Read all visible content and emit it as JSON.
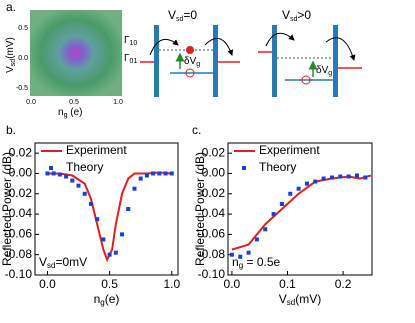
{
  "panel_labels": [
    "a.",
    "b.",
    "c."
  ],
  "panel_a": {
    "x_label": {
      "main": "n",
      "sub": "g",
      "rest": " (e)"
    },
    "y_label": {
      "main": "V",
      "sub": "sd",
      "rest": "(mV)"
    },
    "xticks": [
      "0.0",
      "0.5",
      "1.0"
    ],
    "yticks": [
      "0.5",
      "0.0",
      "-0.5"
    ],
    "diagram_left": {
      "title": {
        "main": "V",
        "sub": "sd",
        "rest": "=0"
      },
      "gamma_in": {
        "main": "Γ",
        "sub": "10"
      },
      "gamma_out": {
        "main": "Γ",
        "sub": "01"
      },
      "shift": {
        "main": "δV",
        "sub": "g"
      }
    },
    "diagram_right": {
      "title": {
        "main": "V",
        "sub": "sd",
        "rest": ">0"
      },
      "shift": {
        "main": "δV",
        "sub": "g"
      }
    }
  },
  "chart_data": [
    {
      "type": "line",
      "y_label": "Reflected Power (dB)",
      "x_label": {
        "main": "n",
        "sub": "g",
        "rest": "(e)"
      },
      "annotation": {
        "main": "V",
        "sub": "sd",
        "rest": "=0mV"
      },
      "xlim": [
        -0.1,
        1.05
      ],
      "xticks": [
        {
          "value": 0,
          "label": "0.0"
        },
        {
          "value": 0.5,
          "label": "0.5"
        },
        {
          "value": 1,
          "label": "1.0"
        }
      ],
      "ylim": [
        -0.1,
        0.03
      ],
      "yticks": [
        {
          "value": 0.02,
          "label": "0.02"
        },
        {
          "value": 0,
          "label": "0.00"
        },
        {
          "value": -0.02,
          "label": "-0.02"
        },
        {
          "value": -0.04,
          "label": "-0.04"
        },
        {
          "value": -0.06,
          "label": "-0.06"
        },
        {
          "value": -0.08,
          "label": "-0.08"
        },
        {
          "value": -0.1,
          "label": "-0.10"
        }
      ],
      "series": [
        {
          "name": "Experiment",
          "kind": "line",
          "color": "#e02020",
          "x": [
            0,
            0.1,
            0.2,
            0.3,
            0.35,
            0.4,
            0.45,
            0.48,
            0.52,
            0.55,
            0.6,
            0.65,
            0.7,
            0.8,
            0.9,
            1.0
          ],
          "values": [
            0,
            0,
            -0.002,
            -0.01,
            -0.025,
            -0.05,
            -0.075,
            -0.085,
            -0.075,
            -0.05,
            -0.02,
            -0.005,
            0,
            0,
            0.001,
            0
          ]
        },
        {
          "name": "Theory",
          "kind": "scatter",
          "color": "#1a3fd6",
          "x": [
            0,
            0.05,
            0.1,
            0.15,
            0.2,
            0.25,
            0.3,
            0.35,
            0.4,
            0.45,
            0.5,
            0.55,
            0.6,
            0.65,
            0.7,
            0.75,
            0.8,
            0.85,
            0.9,
            0.95,
            1.0
          ],
          "values": [
            0,
            0,
            -0.001,
            -0.003,
            -0.007,
            -0.012,
            -0.02,
            -0.03,
            -0.045,
            -0.065,
            -0.08,
            -0.078,
            -0.06,
            -0.035,
            -0.015,
            -0.005,
            -0.002,
            0,
            0,
            0,
            0
          ]
        }
      ]
    },
    {
      "type": "line",
      "y_label": "Reflected Power (dB)",
      "x_label": {
        "main": "V",
        "sub": "sd",
        "rest": "(mV)"
      },
      "annotation": {
        "main": "n",
        "sub": "g",
        "rest": " = 0.5e"
      },
      "xlim": [
        -0.007,
        0.252
      ],
      "xticks": [
        {
          "value": 0,
          "label": "0.0"
        },
        {
          "value": 0.1,
          "label": "0.1"
        },
        {
          "value": 0.2,
          "label": "0.2"
        }
      ],
      "ylim": [
        -0.1,
        0.03
      ],
      "yticks": [
        {
          "value": 0.02,
          "label": "0.02"
        },
        {
          "value": 0,
          "label": "0.00"
        },
        {
          "value": -0.02,
          "label": "-0.02"
        },
        {
          "value": -0.04,
          "label": "-0.04"
        },
        {
          "value": -0.06,
          "label": "-0.06"
        },
        {
          "value": -0.08,
          "label": "-0.08"
        },
        {
          "value": -0.1,
          "label": "-0.10"
        }
      ],
      "series": [
        {
          "name": "Experiment",
          "kind": "line",
          "color": "#e02020",
          "x": [
            0,
            0.03,
            0.06,
            0.09,
            0.12,
            0.15,
            0.18,
            0.21,
            0.23,
            0.25
          ],
          "values": [
            -0.075,
            -0.07,
            -0.05,
            -0.035,
            -0.02,
            -0.008,
            -0.005,
            -0.003,
            -0.005,
            -0.002
          ]
        },
        {
          "name": "Theory",
          "kind": "scatter",
          "color": "#1a3fd6",
          "x": [
            0,
            0.015,
            0.03,
            0.045,
            0.06,
            0.075,
            0.09,
            0.105,
            0.12,
            0.135,
            0.15,
            0.165,
            0.18,
            0.195,
            0.21,
            0.225,
            0.24
          ],
          "values": [
            -0.08,
            -0.082,
            -0.078,
            -0.065,
            -0.055,
            -0.04,
            -0.03,
            -0.02,
            -0.015,
            -0.01,
            -0.008,
            -0.005,
            -0.004,
            -0.003,
            -0.003,
            -0.002,
            -0.004
          ]
        }
      ]
    }
  ]
}
